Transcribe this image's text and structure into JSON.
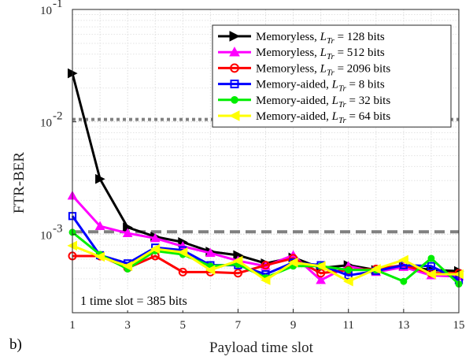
{
  "panel_label": "b)",
  "chart_data": {
    "type": "line",
    "xlabel": "Payload time slot",
    "ylabel": "FTR-BER",
    "x_scale": "linear",
    "y_scale": "log",
    "xlim": [
      1,
      15
    ],
    "ylim": [
      0.0002,
      0.1
    ],
    "x_ticks": [
      1,
      3,
      5,
      7,
      9,
      11,
      13,
      15
    ],
    "y_ticks": [
      {
        "value": 0.001,
        "base": "10",
        "exp": "-3"
      },
      {
        "value": 0.01,
        "base": "10",
        "exp": "-2"
      },
      {
        "value": 0.1,
        "base": "10",
        "exp": "-1"
      }
    ],
    "grid": true,
    "legend_position": "top-right",
    "x": [
      1,
      2,
      3,
      4,
      5,
      6,
      7,
      8,
      9,
      10,
      11,
      12,
      13,
      14,
      15
    ],
    "series": [
      {
        "name": "Memoryless, L_Tr = 128 bits",
        "label_prefix": "Memoryless, ",
        "label_suffix": " = 128 bits",
        "color": "#000000",
        "marker": "triangle-right",
        "values": [
          0.027,
          0.0031,
          0.00115,
          0.00095,
          0.00085,
          0.0007,
          0.00065,
          0.00055,
          0.00062,
          0.0005,
          0.00053,
          0.00048,
          0.00052,
          0.00048,
          0.00047
        ]
      },
      {
        "name": "Memoryless, L_Tr = 512 bits",
        "label_prefix": "Memoryless, ",
        "label_suffix": " = 512 bits",
        "color": "#ff00ff",
        "marker": "triangle-up",
        "values": [
          0.0022,
          0.00118,
          0.00102,
          0.00092,
          0.00078,
          0.00068,
          0.00058,
          0.00052,
          0.00065,
          0.00039,
          0.00052,
          0.00046,
          0.00051,
          0.00043,
          0.00042
        ]
      },
      {
        "name": "Memoryless, L_Tr = 2096 bits",
        "label_prefix": "Memoryless, ",
        "label_suffix": " = 2096 bits",
        "color": "#ff0000",
        "marker": "circle",
        "values": [
          0.00064,
          0.00064,
          0.0005,
          0.00064,
          0.00046,
          0.00046,
          0.00045,
          0.00053,
          0.00061,
          0.00045,
          0.00048,
          0.00049,
          0.00053,
          0.00045,
          0.00045
        ]
      },
      {
        "name": "Memory-aided, L_Tr = 8 bits",
        "label_prefix": "Memory-aided, ",
        "label_suffix": " = 8 bits",
        "color": "#0000ff",
        "marker": "square",
        "values": [
          0.00145,
          0.00065,
          0.00055,
          0.00076,
          0.00072,
          0.00053,
          0.00053,
          0.00044,
          0.00056,
          0.00053,
          0.00043,
          0.00047,
          0.00053,
          0.00052,
          0.00039
        ]
      },
      {
        "name": "Memory-aided, L_Tr = 32 bits",
        "label_prefix": "Memory-aided, ",
        "label_suffix": " = 32 bits",
        "color": "#00ee00",
        "marker": "circle-filled",
        "values": [
          0.00104,
          0.00066,
          0.00049,
          0.00071,
          0.00066,
          0.00052,
          0.00054,
          0.00041,
          0.00052,
          0.00052,
          0.00048,
          0.00048,
          0.00038,
          0.00061,
          0.00036
        ]
      },
      {
        "name": "Memory-aided, L_Tr = 64 bits",
        "label_prefix": "Memory-aided, ",
        "label_suffix": " = 64 bits",
        "color": "#ffff00",
        "marker": "triangle-left",
        "values": [
          0.00079,
          0.00063,
          0.00052,
          0.00074,
          0.00069,
          0.00048,
          0.00058,
          0.00039,
          0.00056,
          0.00052,
          0.00038,
          0.00049,
          0.00059,
          0.00044,
          0.00044
        ]
      }
    ],
    "reference_lines": [
      {
        "y": 0.0105,
        "style": "dotted",
        "color": "#808080"
      },
      {
        "y": 0.00105,
        "style": "dashed",
        "color": "#808080"
      }
    ],
    "annotations": [
      {
        "text": "1 time slot = 385 bits"
      }
    ],
    "legend_symbol": {
      "base": "L",
      "sub": "Tr"
    }
  }
}
